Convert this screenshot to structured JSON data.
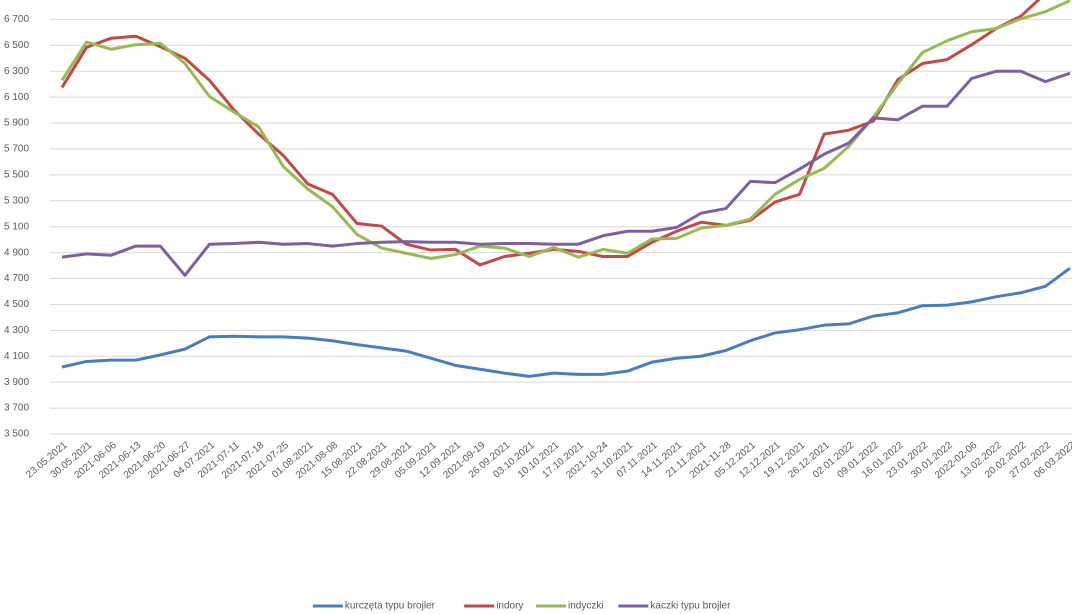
{
  "chart_data": {
    "type": "line",
    "categories": [
      "23.05.2021",
      "30.05.2021",
      "2021-06-06",
      "2021-06-13",
      "2021-06-20",
      "2021-06-27",
      "04.07.2021",
      "2021-07-11",
      "2021-07-18",
      "2021-07-25",
      "01.08.2021",
      "2021-08-08",
      "15.08.2021",
      "22.08.2021",
      "29.08.2021",
      "05.09.2021",
      "12.09.2021",
      "2021-09-19",
      "26.09.2021",
      "03.10.2021",
      "10.10.2021",
      "17.10.2021",
      "2021-10-24",
      "31.10.2021",
      "07.11.2021",
      "14.11.2021",
      "21.11.2021",
      "2021-11-28",
      "05.12.2021",
      "12.12.2021",
      "19.12.2021",
      "26.12.2021",
      "02.01.2022",
      "09.01.2022",
      "16.01.2022",
      "23.01.2022",
      "30.01.2022",
      "2022-02-06",
      "13.02.2022",
      "20.02.2022",
      "27.02.2022",
      "06.03.2022"
    ],
    "series": [
      {
        "name": "kurczęta typu brojler",
        "color": "#4a7ebb",
        "values": [
          4017,
          4060,
          4070,
          4070,
          4110,
          4155,
          4250,
          4255,
          4250,
          4250,
          4240,
          4220,
          4190,
          4165,
          4140,
          4085,
          4030,
          4000,
          3970,
          3945,
          3970,
          3960,
          3960,
          3985,
          4055,
          4085,
          4100,
          4145,
          4220,
          4280,
          4305,
          4340,
          4350,
          4410,
          4435,
          4490,
          4495,
          4520,
          4560,
          4590,
          4640,
          4780
        ]
      },
      {
        "name": "indory",
        "color": "#be4b48",
        "values": [
          6175,
          6485,
          6555,
          6570,
          6490,
          6400,
          6230,
          6000,
          5815,
          5650,
          5430,
          5350,
          5125,
          5105,
          4965,
          4920,
          4925,
          4805,
          4870,
          4895,
          4925,
          4910,
          4870,
          4870,
          4980,
          5065,
          5135,
          5110,
          5150,
          5290,
          5350,
          5815,
          5845,
          5915,
          6235,
          6360,
          6390,
          6505,
          6630,
          6725,
          6900,
          7000
        ]
      },
      {
        "name": "indyczki",
        "color": "#98b954",
        "values": [
          6230,
          6525,
          6470,
          6505,
          6515,
          6360,
          6105,
          5985,
          5870,
          5565,
          5390,
          5255,
          5040,
          4935,
          4895,
          4855,
          4885,
          4950,
          4935,
          4870,
          4940,
          4865,
          4925,
          4895,
          5005,
          5010,
          5090,
          5110,
          5160,
          5350,
          5465,
          5550,
          5720,
          5945,
          6205,
          6445,
          6535,
          6605,
          6630,
          6705,
          6760,
          6845
        ]
      },
      {
        "name": "kaczki typu brojler",
        "color": "#7d60a0",
        "values": [
          4865,
          4890,
          4880,
          4950,
          4950,
          4725,
          4965,
          4970,
          4980,
          4965,
          4970,
          4950,
          4970,
          4980,
          4985,
          4980,
          4980,
          4965,
          4970,
          4970,
          4965,
          4965,
          5030,
          5065,
          5065,
          5095,
          5205,
          5240,
          5450,
          5440,
          5545,
          5660,
          5745,
          5940,
          5925,
          6030,
          6030,
          6245,
          6300,
          6300,
          6220,
          6285
        ]
      }
    ],
    "ylim": [
      3500,
      6850
    ],
    "yticks": [
      {
        "value": 3500,
        "label": "3 500"
      },
      {
        "value": 3700,
        "label": "3 700"
      },
      {
        "value": 3900,
        "label": "3 900"
      },
      {
        "value": 4100,
        "label": "4 100"
      },
      {
        "value": 4300,
        "label": "4 300"
      },
      {
        "value": 4500,
        "label": "4 500"
      },
      {
        "value": 4700,
        "label": "4 700"
      },
      {
        "value": 4900,
        "label": "4 900"
      },
      {
        "value": 5100,
        "label": "5 100"
      },
      {
        "value": 5300,
        "label": "5 300"
      },
      {
        "value": 5500,
        "label": "5 500"
      },
      {
        "value": 5700,
        "label": "5 700"
      },
      {
        "value": 5900,
        "label": "5 900"
      },
      {
        "value": 6100,
        "label": "6 100"
      },
      {
        "value": 6300,
        "label": "6 300"
      },
      {
        "value": 6500,
        "label": "6 500"
      },
      {
        "value": 6700,
        "label": "6 700"
      }
    ],
    "grid": true,
    "legend": "bottom"
  }
}
